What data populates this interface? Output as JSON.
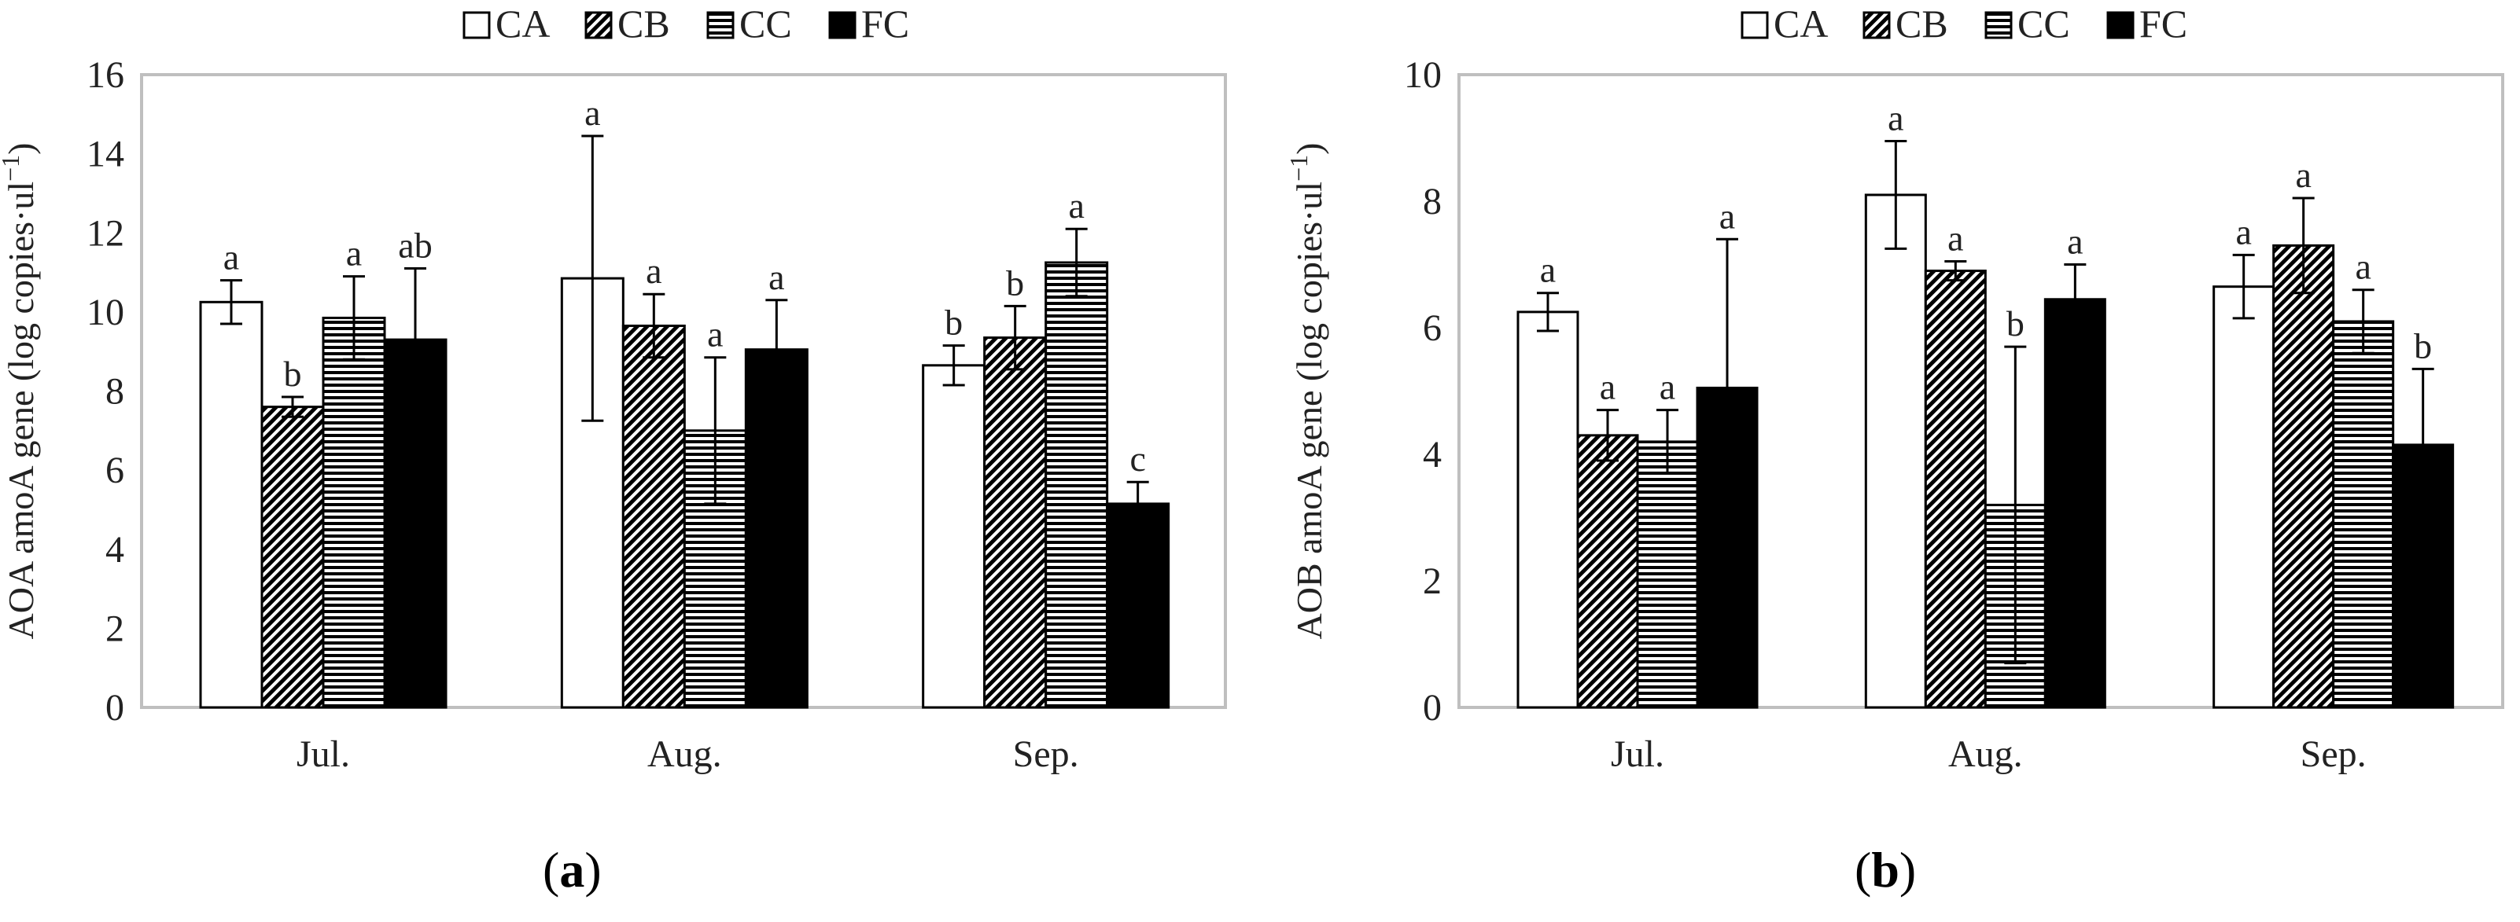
{
  "chart_data": [
    {
      "type": "bar",
      "panel_label": "a",
      "ylabel_main": "AOA amoA gene (log copies·ul",
      "ylabel_sup": "−1",
      "ylabel_tail": ")",
      "xlabel": "",
      "ylim": [
        0,
        16
      ],
      "yticks": [
        0,
        2,
        4,
        6,
        8,
        10,
        12,
        14,
        16
      ],
      "grid": false,
      "legend_position": "top",
      "categories": [
        "Jul.",
        "Aug.",
        "Sep."
      ],
      "series": [
        {
          "name": "CA",
          "pattern": "white",
          "values": [
            10.25,
            10.85,
            8.65
          ],
          "errors": [
            0.55,
            3.6,
            0.5
          ],
          "labels": [
            "a",
            "a",
            "b"
          ]
        },
        {
          "name": "CB",
          "pattern": "diagonal",
          "values": [
            7.6,
            9.65,
            9.35
          ],
          "errors": [
            0.25,
            0.8,
            0.8
          ],
          "labels": [
            "b",
            "a",
            "b"
          ]
        },
        {
          "name": "CC",
          "pattern": "horizontal",
          "values": [
            9.85,
            7.0,
            11.25
          ],
          "errors": [
            1.05,
            1.85,
            0.85
          ],
          "labels": [
            "a",
            "a",
            "a"
          ]
        },
        {
          "name": "FC",
          "pattern": "black",
          "values": [
            9.3,
            9.05,
            5.15
          ],
          "errors": [
            1.8,
            1.25,
            0.55
          ],
          "labels": [
            "ab",
            "a",
            "c"
          ]
        }
      ]
    },
    {
      "type": "bar",
      "panel_label": "b",
      "ylabel_main": "AOB amoA gene (log copies·ul",
      "ylabel_sup": "−1",
      "ylabel_tail": ")",
      "xlabel": "",
      "ylim": [
        0,
        10
      ],
      "yticks": [
        0,
        2,
        4,
        6,
        8,
        10
      ],
      "grid": false,
      "legend_position": "top",
      "categories": [
        "Jul.",
        "Aug.",
        "Sep."
      ],
      "series": [
        {
          "name": "CA",
          "pattern": "white",
          "values": [
            6.25,
            8.1,
            6.65
          ],
          "errors": [
            0.3,
            0.85,
            0.5
          ],
          "labels": [
            "a",
            "a",
            "a"
          ]
        },
        {
          "name": "CB",
          "pattern": "diagonal",
          "values": [
            4.3,
            6.9,
            7.3
          ],
          "errors": [
            0.4,
            0.15,
            0.75
          ],
          "labels": [
            "a",
            "a",
            "a"
          ]
        },
        {
          "name": "CC",
          "pattern": "horizontal",
          "values": [
            4.2,
            3.2,
            6.1
          ],
          "errors": [
            0.5,
            2.5,
            0.5
          ],
          "labels": [
            "a",
            "b",
            "a"
          ]
        },
        {
          "name": "FC",
          "pattern": "black",
          "values": [
            5.05,
            6.45,
            4.15
          ],
          "errors": [
            2.35,
            0.55,
            1.2
          ],
          "labels": [
            "a",
            "a",
            "b"
          ]
        }
      ]
    }
  ]
}
